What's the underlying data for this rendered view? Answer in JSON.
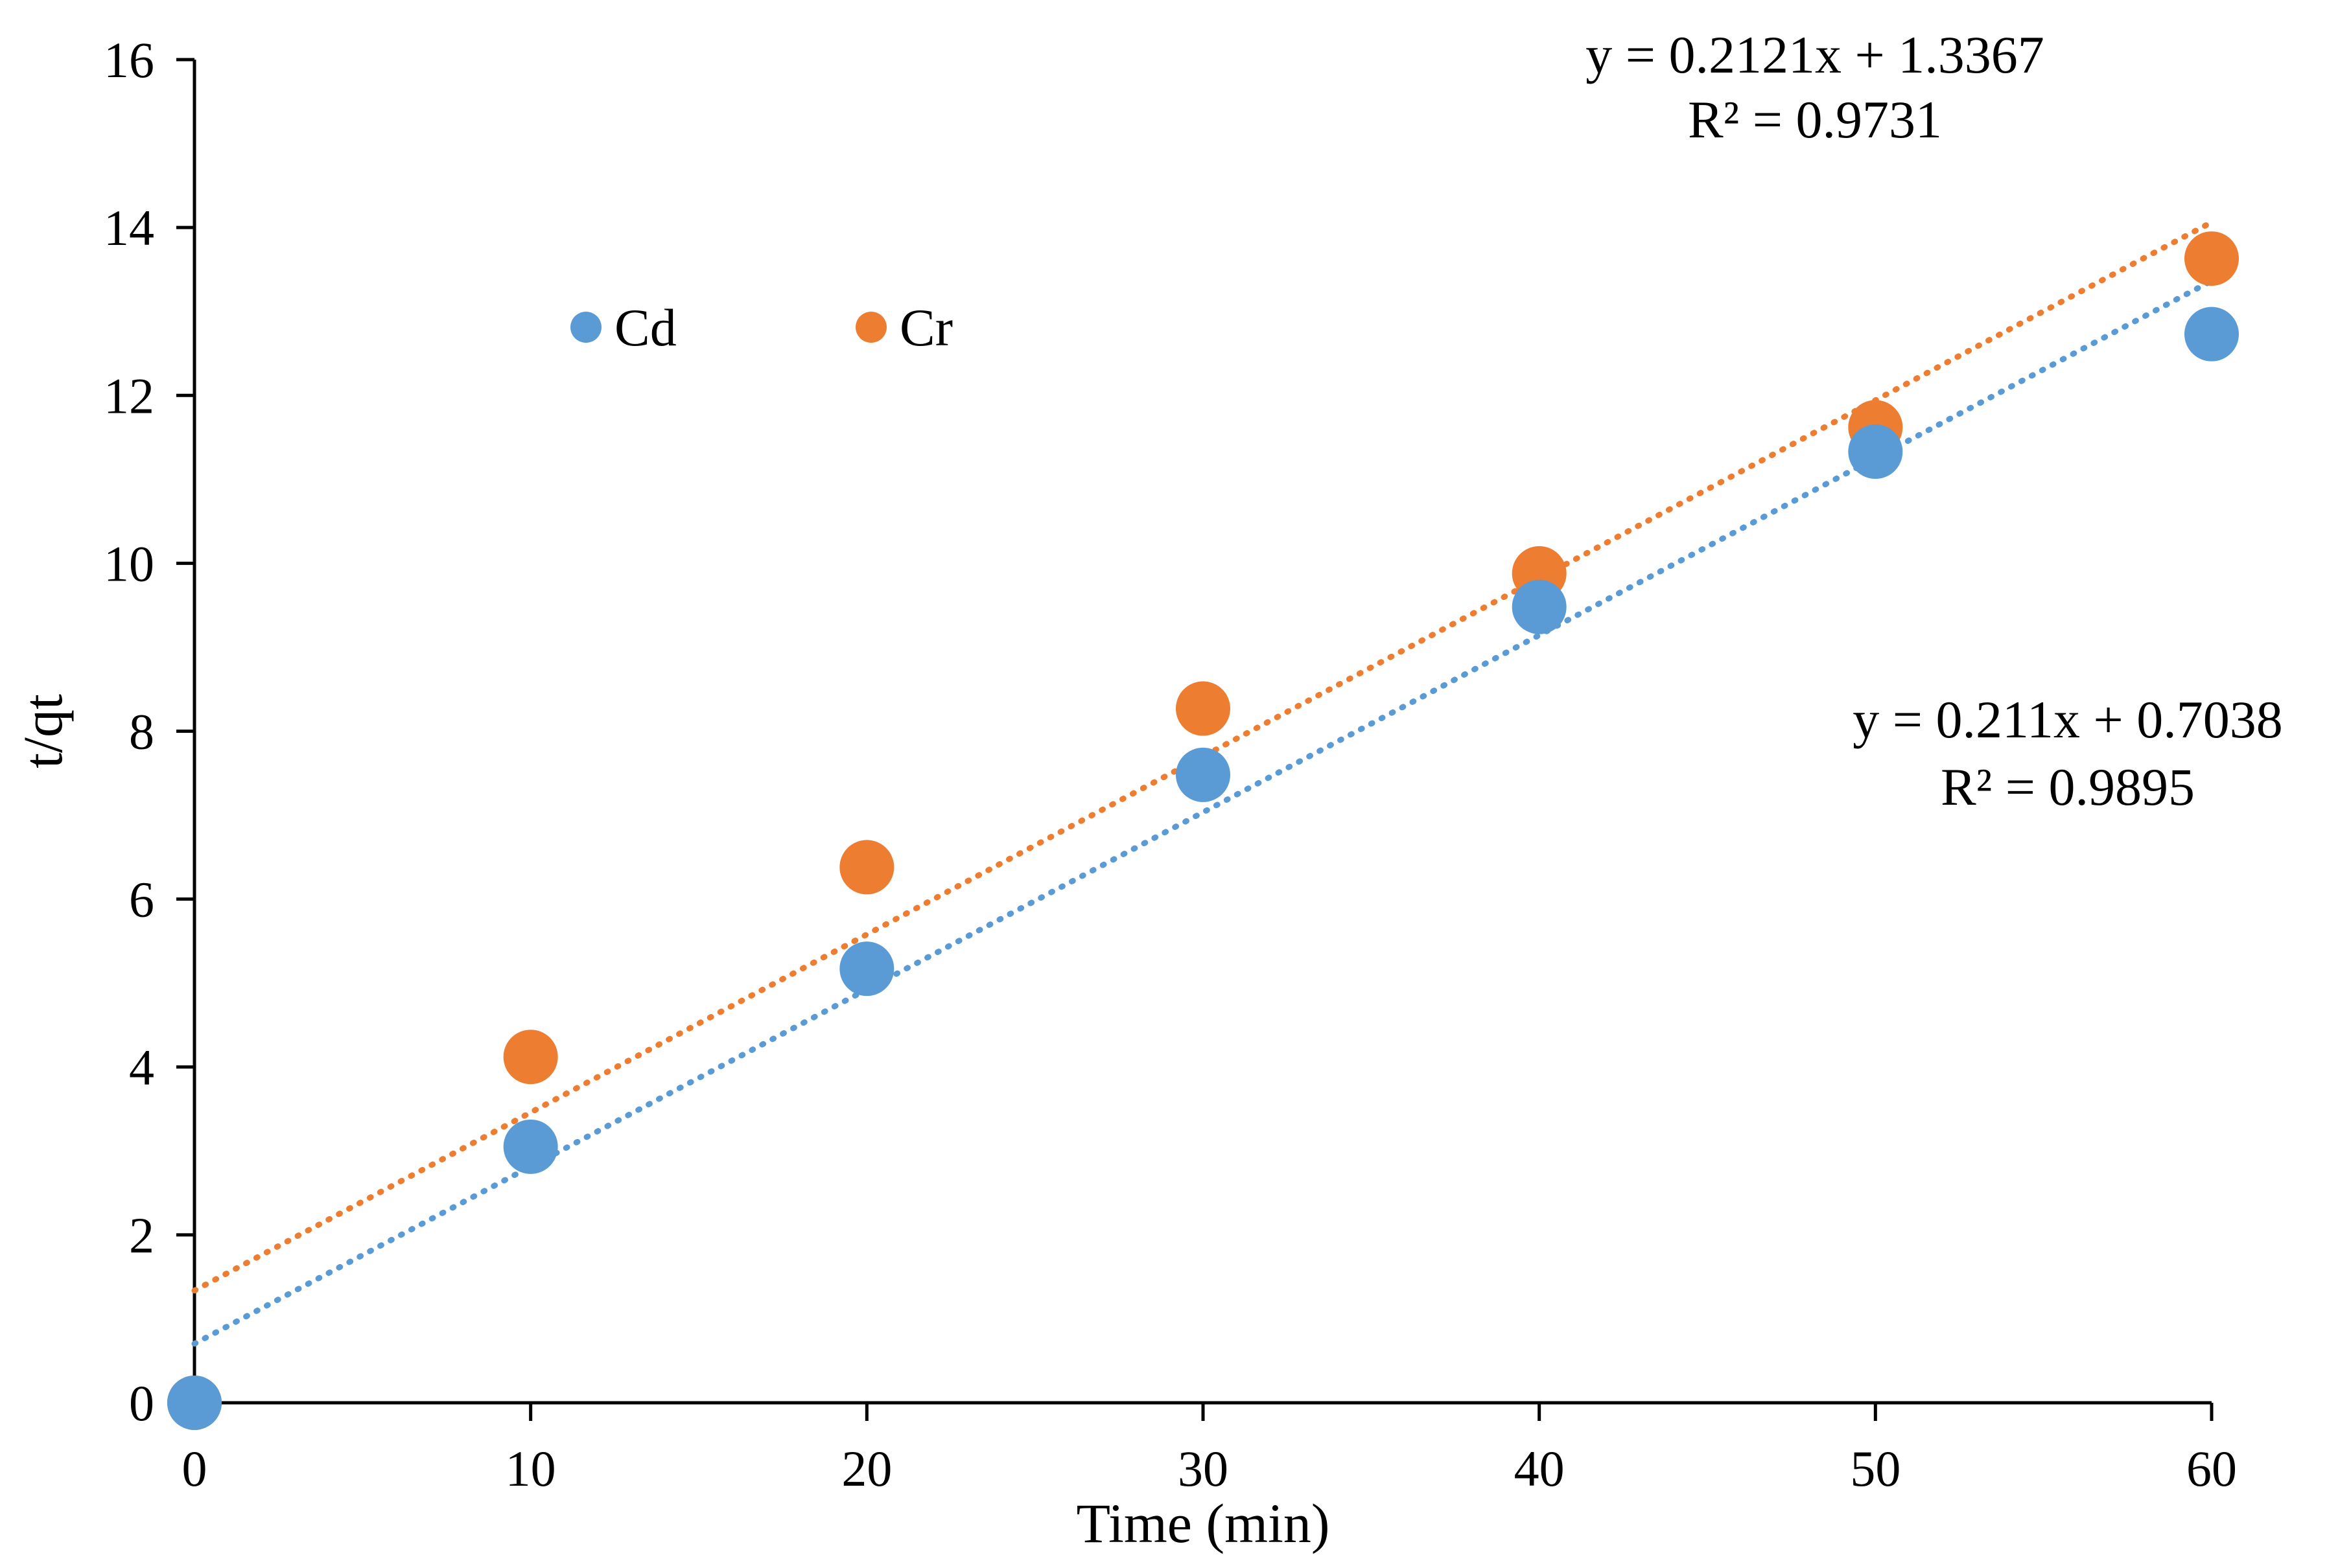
{
  "chart_data": {
    "type": "scatter",
    "title": "",
    "xlabel": "Time (min)",
    "ylabel": "t/qt",
    "xlim": [
      0,
      60
    ],
    "ylim": [
      0,
      16
    ],
    "xticks": [
      0,
      10,
      20,
      30,
      40,
      50,
      60
    ],
    "yticks": [
      0,
      2,
      4,
      6,
      8,
      10,
      12,
      14,
      16
    ],
    "grid": false,
    "legend_position": "top-left",
    "series": [
      {
        "name": "Cd",
        "color": "#5b9bd5",
        "x": [
          0,
          10,
          20,
          30,
          40,
          50,
          60
        ],
        "y": [
          0,
          3.05,
          5.17,
          7.48,
          9.48,
          11.33,
          12.73
        ],
        "trendline": {
          "slope": 0.211,
          "intercept": 0.7038,
          "equation": "y = 0.211x + 0.7038",
          "r2": "R² = 0.9895"
        }
      },
      {
        "name": "Cr",
        "color": "#ed7d31",
        "x": [
          0,
          10,
          20,
          30,
          40,
          50,
          60
        ],
        "y": [
          0,
          4.12,
          6.38,
          8.27,
          9.88,
          11.62,
          13.63
        ],
        "trendline": {
          "slope": 0.2121,
          "intercept": 1.3367,
          "equation": "y = 0.2121x + 1.3367",
          "r2": "R² = 0.9731"
        }
      }
    ]
  }
}
